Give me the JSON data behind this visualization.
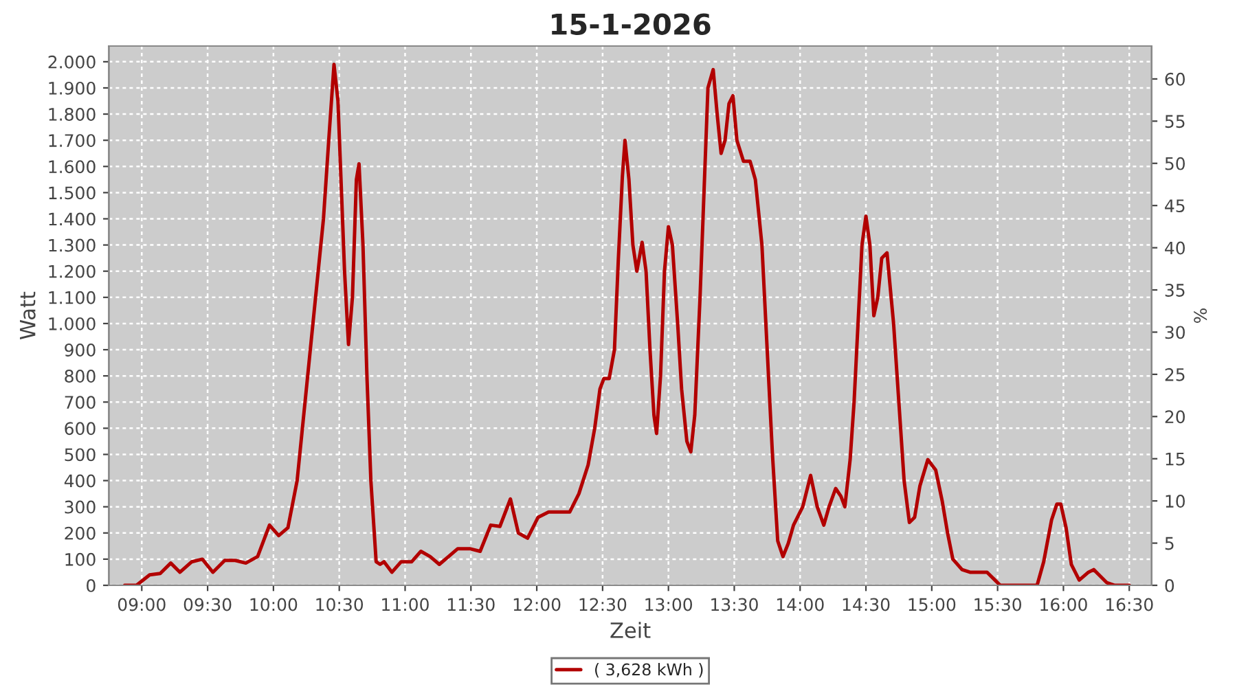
{
  "chart_data": {
    "type": "line",
    "title": "15-1-2026",
    "xlabel": "Zeit",
    "ylabel": "Watt",
    "y2label": "%",
    "x": [
      8.87,
      8.96,
      9.06,
      9.14,
      9.22,
      9.29,
      9.38,
      9.46,
      9.54,
      9.63,
      9.71,
      9.79,
      9.88,
      9.97,
      10.04,
      10.11,
      10.18,
      10.25,
      10.32,
      10.38,
      10.42,
      10.46,
      10.49,
      10.54,
      10.57,
      10.6,
      10.63,
      10.65,
      10.68,
      10.71,
      10.74,
      10.78,
      10.81,
      10.84,
      10.9,
      10.97,
      11.05,
      11.12,
      11.19,
      11.26,
      11.33,
      11.4,
      11.49,
      11.57,
      11.65,
      11.72,
      11.8,
      11.86,
      11.93,
      12.01,
      12.09,
      12.18,
      12.25,
      12.32,
      12.39,
      12.44,
      12.48,
      12.51,
      12.55,
      12.59,
      12.62,
      12.65,
      12.67,
      12.7,
      12.73,
      12.76,
      12.8,
      12.83,
      12.86,
      12.89,
      12.91,
      12.94,
      12.97,
      13.0,
      13.03,
      13.07,
      13.1,
      13.14,
      13.17,
      13.2,
      13.24,
      13.27,
      13.3,
      13.34,
      13.37,
      13.4,
      13.43,
      13.46,
      13.49,
      13.52,
      13.57,
      13.62,
      13.66,
      13.71,
      13.75,
      13.79,
      13.83,
      13.87,
      13.91,
      13.95,
      14.02,
      14.08,
      14.13,
      14.18,
      14.22,
      14.27,
      14.31,
      14.34,
      14.38,
      14.41,
      14.44,
      14.47,
      14.5,
      14.53,
      14.56,
      14.59,
      14.62,
      14.66,
      14.71,
      14.75,
      14.79,
      14.83,
      14.87,
      14.91,
      14.97,
      15.03,
      15.08,
      15.12,
      15.16,
      15.23,
      15.29,
      15.35,
      15.42,
      15.48,
      15.52,
      15.59,
      15.7,
      15.8,
      15.85,
      15.91,
      15.95,
      15.98,
      16.02,
      16.06,
      16.12,
      16.19,
      16.23,
      16.27,
      16.33,
      16.39,
      16.5
    ],
    "series": [
      {
        "name": "( 3,628 kWh )",
        "color": "#b20000",
        "values": [
          0,
          0,
          40,
          45,
          85,
          50,
          90,
          100,
          50,
          95,
          95,
          85,
          110,
          230,
          190,
          220,
          400,
          750,
          1100,
          1400,
          1700,
          1990,
          1850,
          1200,
          920,
          1100,
          1550,
          1610,
          1300,
          800,
          400,
          90,
          80,
          90,
          50,
          90,
          90,
          130,
          110,
          80,
          110,
          140,
          140,
          130,
          230,
          225,
          330,
          200,
          180,
          260,
          280,
          280,
          280,
          350,
          460,
          600,
          750,
          790,
          790,
          900,
          1250,
          1560,
          1700,
          1550,
          1300,
          1200,
          1310,
          1200,
          900,
          650,
          580,
          800,
          1200,
          1370,
          1300,
          1000,
          750,
          550,
          510,
          650,
          1100,
          1500,
          1900,
          1970,
          1800,
          1650,
          1700,
          1840,
          1870,
          1700,
          1620,
          1620,
          1550,
          1300,
          900,
          500,
          170,
          110,
          160,
          230,
          300,
          420,
          300,
          230,
          300,
          370,
          340,
          300,
          480,
          700,
          1000,
          1300,
          1410,
          1300,
          1030,
          1100,
          1250,
          1270,
          1000,
          700,
          400,
          240,
          260,
          380,
          480,
          440,
          320,
          200,
          100,
          60,
          50,
          50,
          50,
          20,
          0,
          0,
          0,
          0,
          90,
          250,
          310,
          310,
          220,
          80,
          20,
          50,
          60,
          40,
          10,
          0,
          0
        ]
      }
    ],
    "xlim": [
      8.75,
      16.67
    ],
    "xticks": [
      {
        "value": 9,
        "label": "09:00"
      },
      {
        "value": 9.5,
        "label": "09:30"
      },
      {
        "value": 10,
        "label": "10:00"
      },
      {
        "value": 10.5,
        "label": "10:30"
      },
      {
        "value": 11,
        "label": "11:00"
      },
      {
        "value": 11.5,
        "label": "11:30"
      },
      {
        "value": 12,
        "label": "12:00"
      },
      {
        "value": 12.5,
        "label": "12:30"
      },
      {
        "value": 13,
        "label": "13:00"
      },
      {
        "value": 13.5,
        "label": "13:30"
      },
      {
        "value": 14,
        "label": "14:00"
      },
      {
        "value": 14.5,
        "label": "14:30"
      },
      {
        "value": 15,
        "label": "15:00"
      },
      {
        "value": 15.5,
        "label": "15:30"
      },
      {
        "value": 16,
        "label": "16:00"
      },
      {
        "value": 16.5,
        "label": "16:30"
      }
    ],
    "ylim": [
      0,
      2060
    ],
    "yticks": [
      0,
      100,
      200,
      300,
      400,
      500,
      600,
      700,
      800,
      900,
      {
        "value": 1000,
        "label": "1.000"
      },
      {
        "value": 1100,
        "label": "1.100"
      },
      {
        "value": 1200,
        "label": "1.200"
      },
      {
        "value": 1300,
        "label": "1.300"
      },
      {
        "value": 1400,
        "label": "1.400"
      },
      {
        "value": 1500,
        "label": "1.500"
      },
      {
        "value": 1600,
        "label": "1.600"
      },
      {
        "value": 1700,
        "label": "1.700"
      },
      {
        "value": 1800,
        "label": "1.800"
      },
      {
        "value": 1900,
        "label": "1.900"
      },
      {
        "value": 2000,
        "label": "2.000"
      }
    ],
    "y2lim": [
      0,
      63.9
    ],
    "y2ticks": [
      0,
      5,
      10,
      15,
      20,
      25,
      30,
      35,
      40,
      45,
      50,
      55,
      60
    ],
    "grid": true,
    "legend": "bottom",
    "marker": "none",
    "line_style": "solid"
  }
}
